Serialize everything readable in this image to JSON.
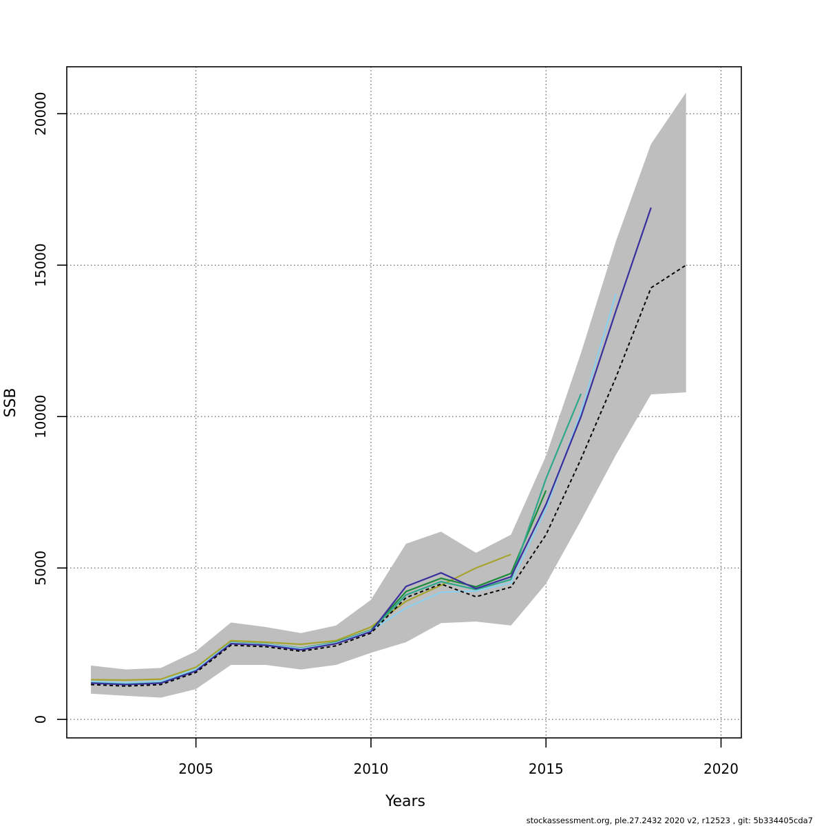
{
  "figure": {
    "footer_text": "stockassessment.org, ple.27.2432  2020  v2, r12523 , git: 5b334405cda7"
  },
  "chart_data": {
    "type": "line",
    "title": "",
    "xlabel": "Years",
    "ylabel": "SSB",
    "grid": "dotted",
    "legend_position": "none",
    "x_ticks": [
      2005,
      2010,
      2015,
      2020
    ],
    "y_ticks": [
      0,
      5000,
      10000,
      15000,
      20000
    ],
    "xlim": [
      2001.31,
      2020.58
    ],
    "ylim": [
      -610,
      21550
    ],
    "years": [
      2002,
      2003,
      2004,
      2005,
      2006,
      2007,
      2008,
      2009,
      2010,
      2011,
      2012,
      2013,
      2014,
      2015,
      2016,
      2017,
      2018,
      2019
    ],
    "confidence_band": {
      "name": "final-run-confidence-band",
      "color": "#bebebe",
      "low": [
        850,
        780,
        720,
        1000,
        1800,
        1800,
        1650,
        1800,
        2200,
        2550,
        3180,
        3230,
        3100,
        4480,
        6570,
        8740,
        10730,
        10800
      ],
      "high": [
        1780,
        1650,
        1700,
        2250,
        3200,
        3050,
        2850,
        3100,
        3950,
        5800,
        6200,
        5500,
        6100,
        8700,
        12100,
        15800,
        19000,
        20700
      ]
    },
    "series": [
      {
        "name": "retro-peel-2014",
        "color": "#a6a42f",
        "style": "solid",
        "values": [
          1310,
          1300,
          1330,
          1720,
          2600,
          2550,
          2480,
          2600,
          3050,
          3900,
          4430,
          5000,
          5450
        ]
      },
      {
        "name": "retro-peel-2015",
        "color": "#1e8b3c",
        "style": "solid",
        "values": [
          1240,
          1190,
          1240,
          1650,
          2540,
          2490,
          2350,
          2550,
          2950,
          4220,
          4660,
          4380,
          4820,
          7560
        ]
      },
      {
        "name": "retro-peel-2016",
        "color": "#2fa78a",
        "style": "solid",
        "values": [
          1230,
          1180,
          1230,
          1630,
          2520,
          2460,
          2320,
          2520,
          2920,
          4110,
          4550,
          4290,
          4620,
          7950,
          10750
        ]
      },
      {
        "name": "retro-peel-2017",
        "color": "#8ccfec",
        "style": "solid",
        "values": [
          1260,
          1210,
          1260,
          1660,
          2530,
          2480,
          2340,
          2530,
          2930,
          3680,
          4200,
          4240,
          4510,
          6950,
          10150,
          14050
        ]
      },
      {
        "name": "retro-peel-2018",
        "color": "#3a2f9d",
        "style": "solid",
        "values": [
          1200,
          1150,
          1200,
          1600,
          2500,
          2450,
          2300,
          2500,
          2900,
          4390,
          4840,
          4320,
          4710,
          7100,
          10000,
          13500,
          16900
        ]
      },
      {
        "name": "final-run-2019",
        "color": "#000000",
        "style": "dashed",
        "values": [
          1150,
          1100,
          1150,
          1550,
          2450,
          2400,
          2250,
          2430,
          2850,
          4020,
          4470,
          4050,
          4370,
          6100,
          8600,
          11300,
          14250,
          15000
        ]
      }
    ]
  }
}
